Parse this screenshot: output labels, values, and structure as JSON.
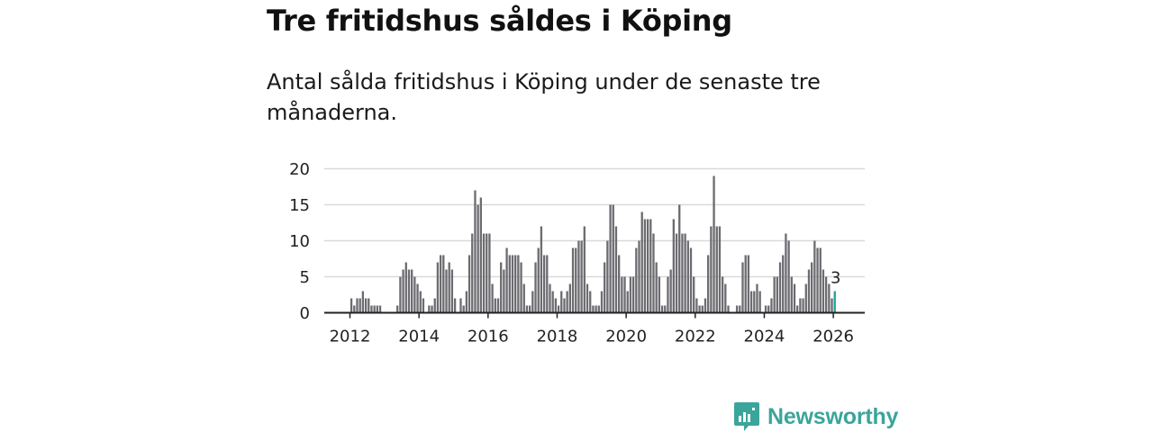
{
  "title": "Tre fritidshus såldes i Köping",
  "subtitle": "Antal sålda fritidshus i Köping under de senaste tre månaderna.",
  "brand": {
    "name": "Newsworthy",
    "icon": "newsworthy-logo-icon",
    "color": "#3aa59b"
  },
  "chart_data": {
    "type": "bar",
    "title": "",
    "xlabel": "",
    "ylabel": "",
    "ylim": [
      0,
      20
    ],
    "yticks": [
      "0",
      "5",
      "10",
      "15",
      "20"
    ],
    "xticks": [
      "2012",
      "2014",
      "2016",
      "2018",
      "2020",
      "2022",
      "2024",
      "2026"
    ],
    "start_year": 2012,
    "start_month": 1,
    "bar_color": "#6b6b70",
    "highlight_color": "#1aa39a",
    "highlight_label": "3",
    "values": [
      2,
      1,
      2,
      2,
      3,
      2,
      2,
      1,
      1,
      1,
      1,
      0,
      0,
      0,
      0,
      0,
      1,
      5,
      6,
      7,
      6,
      6,
      5,
      4,
      3,
      2,
      0,
      1,
      1,
      2,
      7,
      8,
      8,
      6,
      7,
      6,
      2,
      0,
      2,
      1,
      3,
      8,
      11,
      17,
      15,
      16,
      11,
      11,
      11,
      4,
      2,
      2,
      7,
      6,
      9,
      8,
      8,
      8,
      8,
      7,
      4,
      1,
      1,
      3,
      7,
      9,
      12,
      8,
      8,
      4,
      3,
      2,
      1,
      3,
      2,
      3,
      4,
      9,
      9,
      10,
      10,
      12,
      4,
      3,
      1,
      1,
      1,
      3,
      7,
      10,
      15,
      15,
      12,
      8,
      5,
      5,
      3,
      5,
      5,
      9,
      10,
      14,
      13,
      13,
      13,
      11,
      7,
      5,
      1,
      1,
      5,
      6,
      13,
      11,
      15,
      11,
      11,
      10,
      9,
      5,
      2,
      1,
      1,
      2,
      8,
      12,
      19,
      12,
      12,
      5,
      4,
      1,
      0,
      0,
      1,
      1,
      7,
      8,
      8,
      3,
      3,
      4,
      3,
      0,
      1,
      1,
      2,
      5,
      5,
      7,
      8,
      11,
      10,
      5,
      4,
      1,
      2,
      2,
      4,
      6,
      7,
      10,
      9,
      9,
      6,
      5,
      4,
      2,
      3
    ]
  }
}
